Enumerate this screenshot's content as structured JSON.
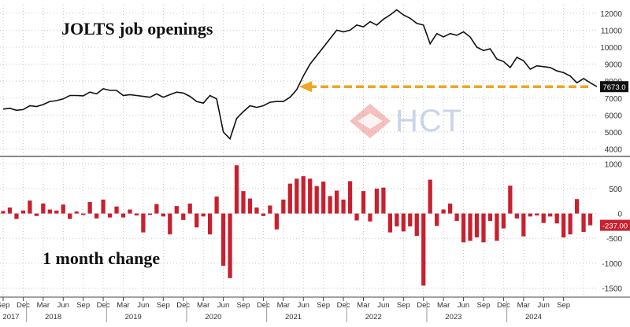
{
  "titles": {
    "top": "JOLTS job openings",
    "bottom": "1 month change"
  },
  "watermark": {
    "text": "HCT",
    "colors": {
      "red": "#e35b5b",
      "blue": "#8fb0dd"
    }
  },
  "colors": {
    "line": "#111111",
    "bar": "#c8202e",
    "target": "#f0a520",
    "grid": "#c8c8c8"
  },
  "chart_data": [
    {
      "type": "line",
      "title": "JOLTS job openings",
      "last_value_label": "7673.0",
      "ylim": [
        3700,
        12500
      ],
      "y_ticks": [
        4000,
        5000,
        6000,
        7000,
        8000,
        9000,
        10000,
        11000,
        12000
      ],
      "y_tick_labels": [
        "4000",
        "5000",
        "6000",
        "7000",
        "8000",
        "9000",
        "10000",
        "11000",
        "12000"
      ],
      "x_start": "2017-09",
      "values": [
        6350,
        6400,
        6280,
        6320,
        6550,
        6500,
        6620,
        6800,
        6850,
        6950,
        7150,
        7150,
        7130,
        7350,
        7250,
        7550,
        7450,
        7450,
        7150,
        7200,
        7150,
        7100,
        7050,
        7250,
        7050,
        7200,
        7350,
        7300,
        7100,
        6800,
        6700,
        7150,
        6950,
        5000,
        4600,
        5800,
        6200,
        6550,
        6450,
        6550,
        6750,
        6800,
        6800,
        7050,
        7500,
        8300,
        9000,
        9500,
        10000,
        10500,
        11000,
        10900,
        11000,
        11300,
        11200,
        11500,
        11300,
        11650,
        11900,
        12200,
        11900,
        11700,
        11400,
        11300,
        10200,
        10800,
        10600,
        10800,
        10700,
        10900,
        10600,
        10000,
        9800,
        9900,
        9300,
        9150,
        8800,
        9400,
        9200,
        8700,
        8900,
        8850,
        8800,
        8600,
        8500,
        8300,
        7900,
        8150,
        7900,
        7673
      ],
      "reference_line": {
        "y": 7673,
        "style": "dashed-arrow",
        "color": "#f0a520"
      },
      "grid": true,
      "y_axis": "right"
    },
    {
      "type": "bar",
      "title": "1 month change",
      "last_value_label": "-237.00",
      "ylim": [
        -1650,
        1100
      ],
      "y_ticks": [
        1000,
        500,
        0,
        -500,
        -1000,
        -1500
      ],
      "y_tick_labels": [
        "1000",
        "500",
        "0",
        "-500",
        "-1000",
        "-1500"
      ],
      "x_start": "2017-09",
      "values": [
        50,
        120,
        -110,
        60,
        260,
        -50,
        200,
        80,
        60,
        180,
        -110,
        40,
        -30,
        230,
        -100,
        280,
        -80,
        140,
        -80,
        80,
        -40,
        -380,
        -30,
        190,
        -60,
        -420,
        150,
        -130,
        200,
        -280,
        -60,
        -420,
        340,
        -1050,
        -1300,
        970,
        450,
        300,
        120,
        -50,
        160,
        -320,
        280,
        600,
        700,
        750,
        700,
        550,
        640,
        350,
        460,
        280,
        650,
        -140,
        450,
        -160,
        500,
        520,
        -380,
        -260,
        -360,
        -260,
        -450,
        -1450,
        680,
        -250,
        80,
        200,
        -150,
        -580,
        -550,
        -480,
        -580,
        -150,
        -550,
        -300,
        560,
        -100,
        -460,
        -60,
        -40,
        -190,
        -60,
        -200,
        -480,
        -420,
        290,
        -370,
        -237
      ],
      "grid": true,
      "y_axis": "right"
    }
  ],
  "x_axis": {
    "month_labels": [
      "Sep",
      "Dec",
      "Mar",
      "Jun",
      "Sep",
      "Dec",
      "Mar",
      "Jun",
      "Sep",
      "Dec",
      "Mar",
      "Jun",
      "Sep",
      "Dec",
      "Mar",
      "Jun",
      "Sep",
      "Dec",
      "Mar",
      "Jun",
      "Sep",
      "Dec",
      "Mar",
      "Jun",
      "Sep",
      "Dec",
      "Mar",
      "Jun",
      "Sep"
    ],
    "year_labels": [
      "2017",
      "2018",
      "2019",
      "2020",
      "2021",
      "2022",
      "2023",
      "2024"
    ]
  }
}
